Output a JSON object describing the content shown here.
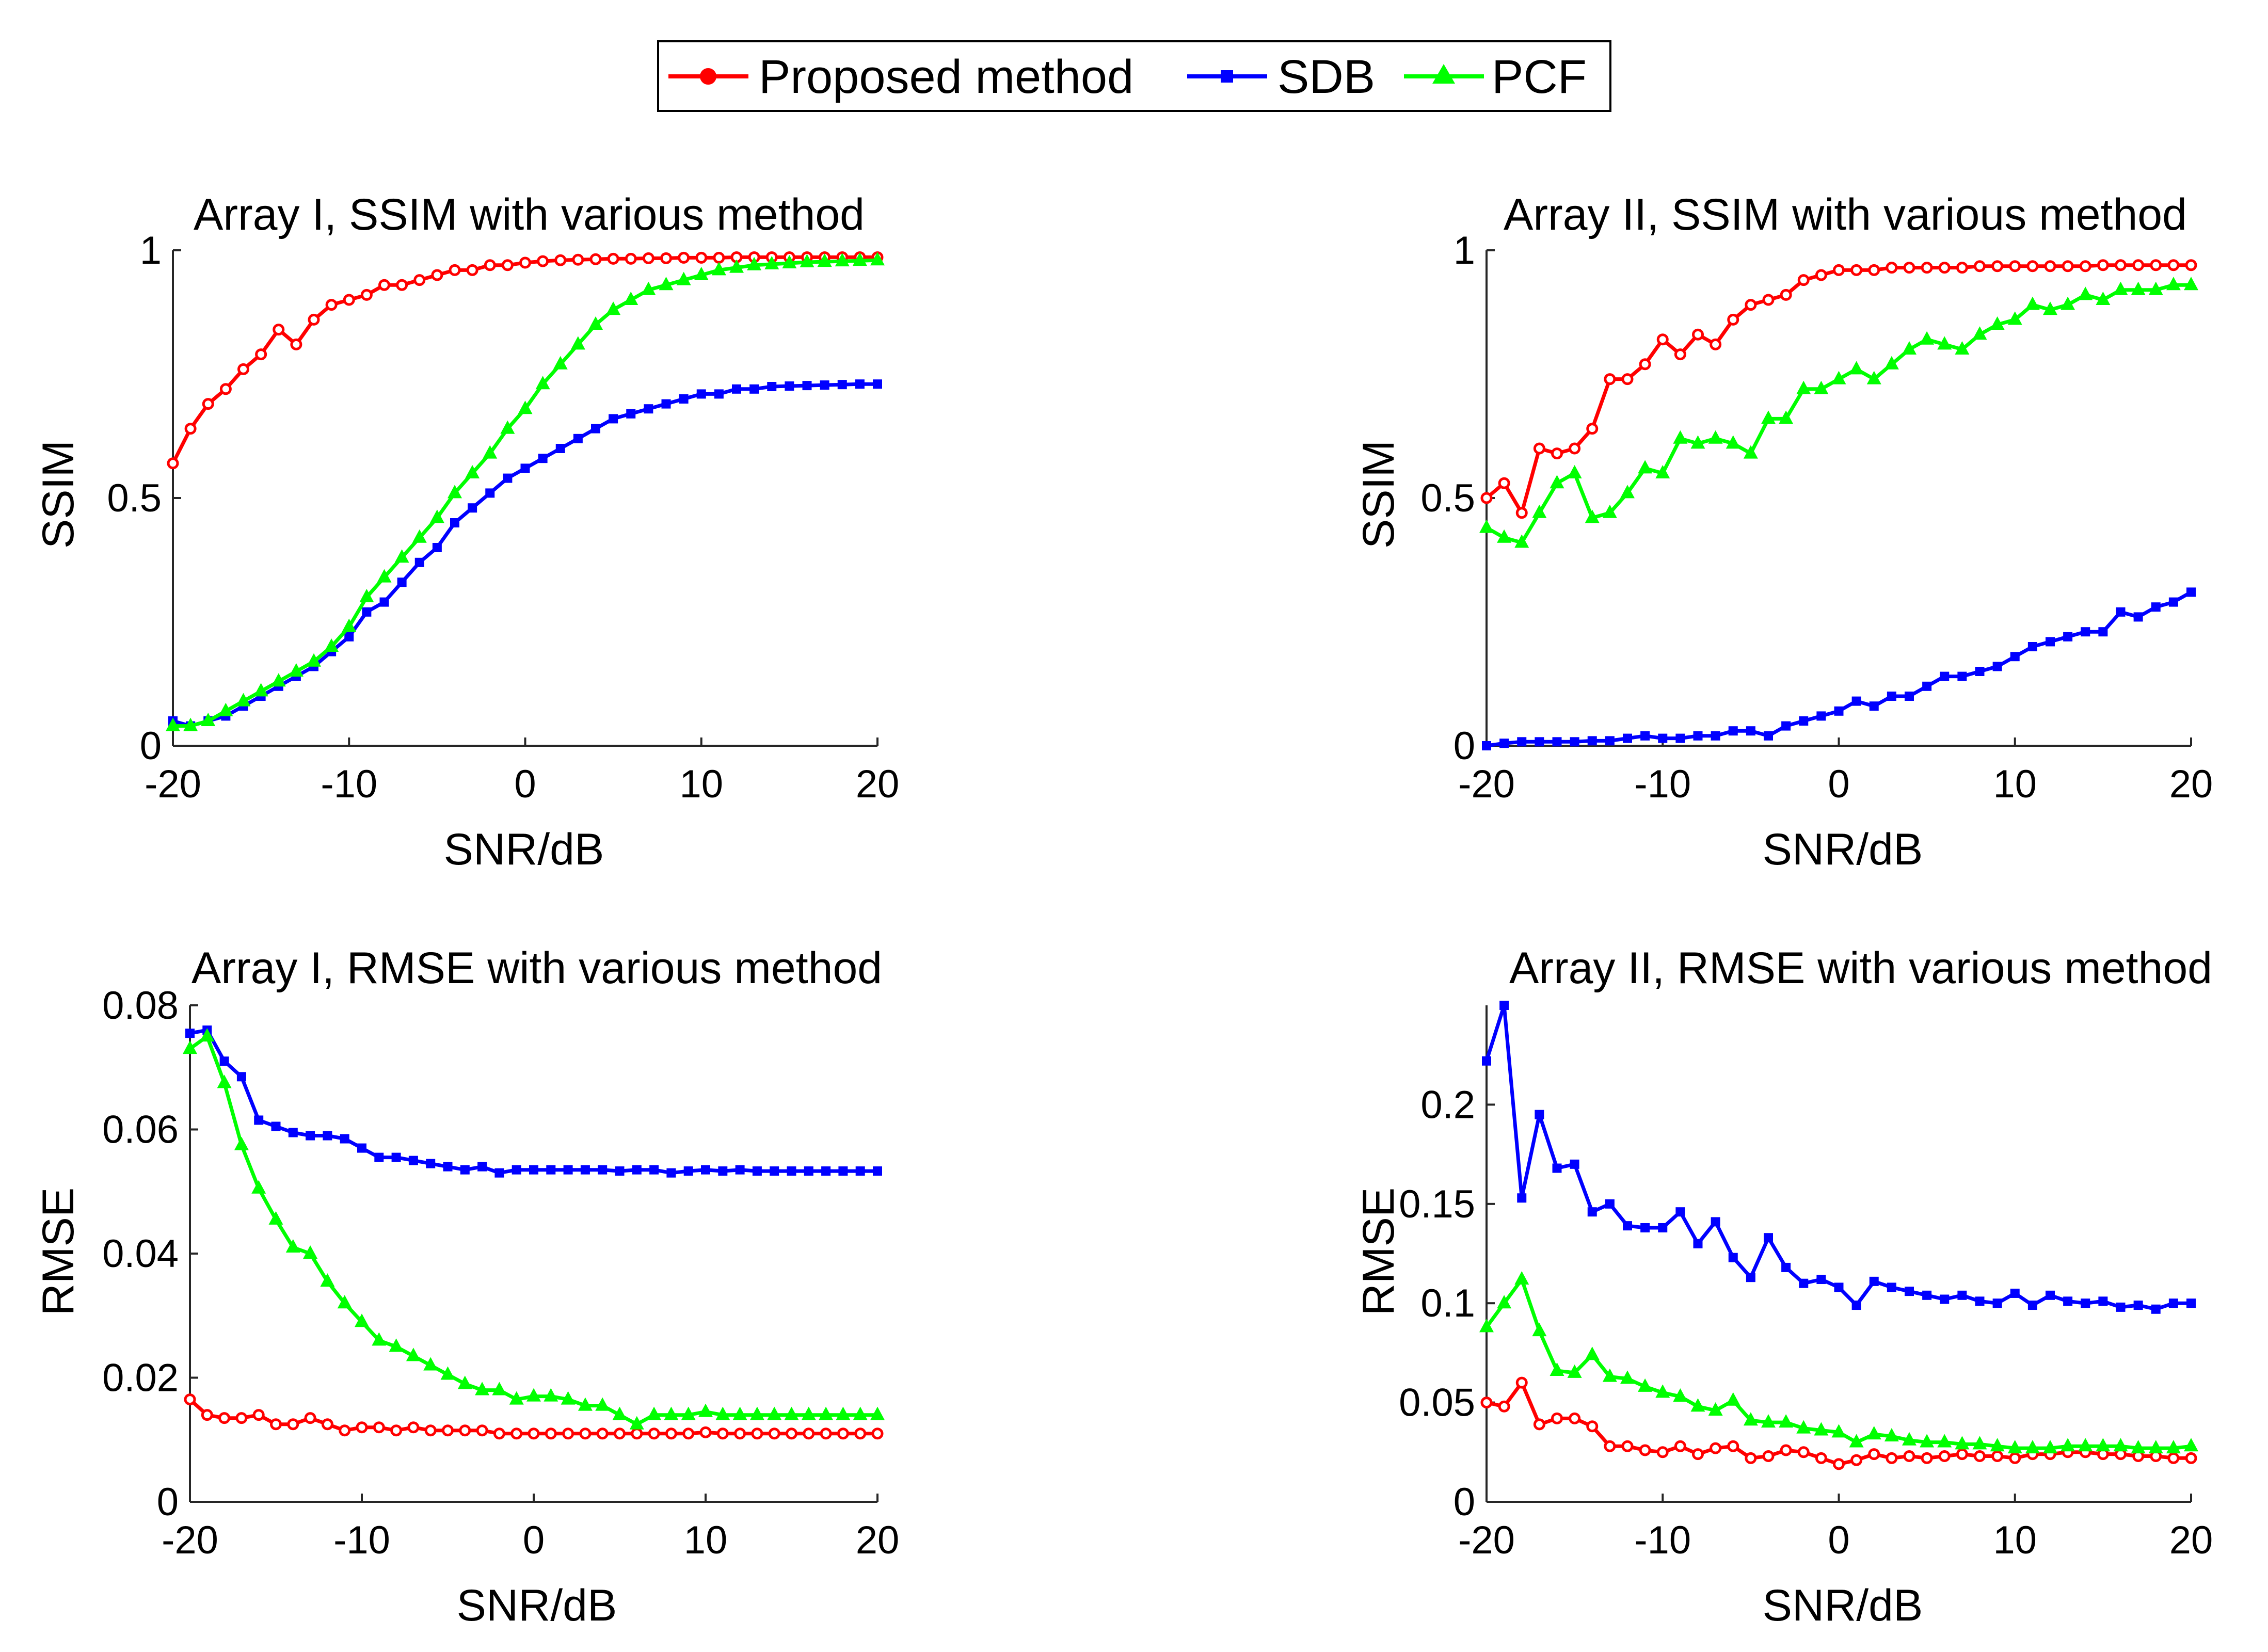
{
  "legend": {
    "entries": [
      {
        "name": "Proposed method",
        "color": "#ff0000",
        "marker": "circle"
      },
      {
        "name": "SDB",
        "color": "#0000ff",
        "marker": "square"
      },
      {
        "name": "PCF",
        "color": "#00ff00",
        "marker": "triangle"
      }
    ]
  },
  "chart_data": [
    {
      "type": "line",
      "title": "Array I, SSIM with various method",
      "xlabel": "SNR/dB",
      "ylabel": "SSIM",
      "xlim": [
        -20,
        20
      ],
      "ylim": [
        0,
        1
      ],
      "xticks": [
        -20,
        -10,
        0,
        10,
        20
      ],
      "xtick_labels": [
        "-20",
        "-10",
        "0",
        "10",
        "20"
      ],
      "yticks": [
        0,
        0.5,
        1
      ],
      "ytick_labels": [
        "0",
        "0.5",
        "1"
      ],
      "x": [
        -20,
        -19,
        -18,
        -17,
        -16,
        -15,
        -14,
        -13,
        -12,
        -11,
        -10,
        -9,
        -8,
        -7,
        -6,
        -5,
        -4,
        -3,
        -2,
        -1,
        0,
        1,
        2,
        3,
        4,
        5,
        6,
        7,
        8,
        9,
        10,
        11,
        12,
        13,
        14,
        15,
        16,
        17,
        18,
        19,
        20
      ],
      "series": [
        {
          "name": "Proposed method",
          "color": "#ff0000",
          "marker": "circle",
          "values": [
            0.57,
            0.64,
            0.69,
            0.72,
            0.76,
            0.79,
            0.84,
            0.81,
            0.86,
            0.89,
            0.9,
            0.91,
            0.93,
            0.93,
            0.94,
            0.95,
            0.96,
            0.96,
            0.97,
            0.97,
            0.975,
            0.978,
            0.98,
            0.981,
            0.982,
            0.983,
            0.983,
            0.984,
            0.984,
            0.985,
            0.985,
            0.985,
            0.986,
            0.986,
            0.986,
            0.986,
            0.986,
            0.986,
            0.986,
            0.986,
            0.986
          ]
        },
        {
          "name": "SDB",
          "color": "#0000ff",
          "marker": "square",
          "values": [
            0.05,
            0.04,
            0.05,
            0.06,
            0.08,
            0.1,
            0.12,
            0.14,
            0.16,
            0.19,
            0.22,
            0.27,
            0.29,
            0.33,
            0.37,
            0.4,
            0.45,
            0.48,
            0.51,
            0.54,
            0.56,
            0.58,
            0.6,
            0.62,
            0.64,
            0.66,
            0.67,
            0.68,
            0.69,
            0.7,
            0.71,
            0.71,
            0.72,
            0.72,
            0.725,
            0.726,
            0.727,
            0.728,
            0.729,
            0.73,
            0.73
          ]
        },
        {
          "name": "PCF",
          "color": "#00ff00",
          "marker": "triangle",
          "values": [
            0.04,
            0.04,
            0.05,
            0.07,
            0.09,
            0.11,
            0.13,
            0.15,
            0.17,
            0.2,
            0.24,
            0.3,
            0.34,
            0.38,
            0.42,
            0.46,
            0.51,
            0.55,
            0.59,
            0.64,
            0.68,
            0.73,
            0.77,
            0.81,
            0.85,
            0.88,
            0.9,
            0.92,
            0.93,
            0.94,
            0.95,
            0.96,
            0.965,
            0.97,
            0.972,
            0.974,
            0.976,
            0.977,
            0.978,
            0.979,
            0.98
          ]
        }
      ]
    },
    {
      "type": "line",
      "title": "Array II, SSIM with various method",
      "xlabel": "SNR/dB",
      "ylabel": "SSIM",
      "xlim": [
        -20,
        20
      ],
      "ylim": [
        0,
        1
      ],
      "xticks": [
        -20,
        -10,
        0,
        10,
        20
      ],
      "xtick_labels": [
        "-20",
        "-10",
        "0",
        "10",
        "20"
      ],
      "yticks": [
        0,
        0.5,
        1
      ],
      "ytick_labels": [
        "0",
        "0.5",
        "1"
      ],
      "x": [
        -20,
        -19,
        -18,
        -17,
        -16,
        -15,
        -14,
        -13,
        -12,
        -11,
        -10,
        -9,
        -8,
        -7,
        -6,
        -5,
        -4,
        -3,
        -2,
        -1,
        0,
        1,
        2,
        3,
        4,
        5,
        6,
        7,
        8,
        9,
        10,
        11,
        12,
        13,
        14,
        15,
        16,
        17,
        18,
        19,
        20
      ],
      "series": [
        {
          "name": "Proposed method",
          "color": "#ff0000",
          "marker": "circle",
          "values": [
            0.5,
            0.53,
            0.47,
            0.6,
            0.59,
            0.6,
            0.64,
            0.74,
            0.74,
            0.77,
            0.82,
            0.79,
            0.83,
            0.81,
            0.86,
            0.89,
            0.9,
            0.91,
            0.94,
            0.95,
            0.96,
            0.96,
            0.96,
            0.965,
            0.965,
            0.965,
            0.965,
            0.965,
            0.968,
            0.968,
            0.968,
            0.968,
            0.968,
            0.968,
            0.968,
            0.97,
            0.97,
            0.97,
            0.97,
            0.97,
            0.97
          ]
        },
        {
          "name": "SDB",
          "color": "#0000ff",
          "marker": "square",
          "values": [
            0.0,
            0.005,
            0.008,
            0.008,
            0.008,
            0.008,
            0.01,
            0.01,
            0.015,
            0.02,
            0.015,
            0.015,
            0.02,
            0.02,
            0.03,
            0.03,
            0.02,
            0.04,
            0.05,
            0.06,
            0.07,
            0.09,
            0.08,
            0.1,
            0.1,
            0.12,
            0.14,
            0.14,
            0.15,
            0.16,
            0.18,
            0.2,
            0.21,
            0.22,
            0.23,
            0.23,
            0.27,
            0.26,
            0.28,
            0.29,
            0.31
          ]
        },
        {
          "name": "PCF",
          "color": "#00ff00",
          "marker": "triangle",
          "values": [
            0.44,
            0.42,
            0.41,
            0.47,
            0.53,
            0.55,
            0.46,
            0.47,
            0.51,
            0.56,
            0.55,
            0.62,
            0.61,
            0.62,
            0.61,
            0.59,
            0.66,
            0.66,
            0.72,
            0.72,
            0.74,
            0.76,
            0.74,
            0.77,
            0.8,
            0.82,
            0.81,
            0.8,
            0.83,
            0.85,
            0.86,
            0.89,
            0.88,
            0.89,
            0.91,
            0.9,
            0.92,
            0.92,
            0.92,
            0.93,
            0.93
          ]
        }
      ]
    },
    {
      "type": "line",
      "title": "Array I, RMSE with various method",
      "xlabel": "SNR/dB",
      "ylabel": "RMSE",
      "xlim": [
        -20,
        20
      ],
      "ylim": [
        0,
        0.08
      ],
      "xticks": [
        -20,
        -10,
        0,
        10,
        20
      ],
      "xtick_labels": [
        "-20",
        "-10",
        "0",
        "10",
        "20"
      ],
      "yticks": [
        0,
        0.02,
        0.04,
        0.06,
        0.08
      ],
      "ytick_labels": [
        "0",
        "0.02",
        "0.04",
        "0.06",
        "0.08"
      ],
      "x": [
        -20,
        -19,
        -18,
        -17,
        -16,
        -15,
        -14,
        -13,
        -12,
        -11,
        -10,
        -9,
        -8,
        -7,
        -6,
        -5,
        -4,
        -3,
        -2,
        -1,
        0,
        1,
        2,
        3,
        4,
        5,
        6,
        7,
        8,
        9,
        10,
        11,
        12,
        13,
        14,
        15,
        16,
        17,
        18,
        19,
        20
      ],
      "series": [
        {
          "name": "Proposed method",
          "color": "#ff0000",
          "marker": "circle",
          "values": [
            0.0165,
            0.014,
            0.0135,
            0.0135,
            0.014,
            0.0125,
            0.0125,
            0.0135,
            0.0125,
            0.0115,
            0.012,
            0.012,
            0.0115,
            0.012,
            0.0115,
            0.0115,
            0.0115,
            0.0115,
            0.011,
            0.011,
            0.011,
            0.011,
            0.011,
            0.011,
            0.011,
            0.011,
            0.011,
            0.011,
            0.011,
            0.011,
            0.0112,
            0.011,
            0.011,
            0.011,
            0.011,
            0.011,
            0.011,
            0.011,
            0.011,
            0.011,
            0.011
          ]
        },
        {
          "name": "SDB",
          "color": "#0000ff",
          "marker": "square",
          "values": [
            0.0755,
            0.076,
            0.071,
            0.0685,
            0.0615,
            0.0605,
            0.0595,
            0.059,
            0.059,
            0.0585,
            0.057,
            0.0555,
            0.0555,
            0.055,
            0.0545,
            0.054,
            0.0535,
            0.054,
            0.053,
            0.0535,
            0.0535,
            0.0535,
            0.0535,
            0.0535,
            0.0535,
            0.0533,
            0.0535,
            0.0535,
            0.053,
            0.0533,
            0.0535,
            0.0533,
            0.0535,
            0.0533,
            0.0533,
            0.0533,
            0.0533,
            0.0533,
            0.0533,
            0.0533,
            0.0533
          ]
        },
        {
          "name": "PCF",
          "color": "#00ff00",
          "marker": "triangle",
          "values": [
            0.073,
            0.075,
            0.0675,
            0.0575,
            0.0505,
            0.0455,
            0.041,
            0.04,
            0.0355,
            0.032,
            0.029,
            0.026,
            0.025,
            0.0235,
            0.022,
            0.0205,
            0.019,
            0.018,
            0.018,
            0.0165,
            0.017,
            0.017,
            0.0165,
            0.0155,
            0.0155,
            0.014,
            0.0125,
            0.014,
            0.014,
            0.014,
            0.0145,
            0.014,
            0.014,
            0.014,
            0.014,
            0.014,
            0.014,
            0.014,
            0.014,
            0.014,
            0.014
          ]
        }
      ]
    },
    {
      "type": "line",
      "title": "Array II, RMSE with various method",
      "xlabel": "SNR/dB",
      "ylabel": "RMSE",
      "xlim": [
        -20,
        20
      ],
      "ylim": [
        0,
        0.25
      ],
      "xticks": [
        -20,
        -10,
        0,
        10,
        20
      ],
      "xtick_labels": [
        "-20",
        "-10",
        "0",
        "10",
        "20"
      ],
      "yticks": [
        0,
        0.05,
        0.1,
        0.15,
        0.2
      ],
      "ytick_labels": [
        "0",
        "0.05",
        "0.1",
        "0.15",
        "0.2"
      ],
      "x": [
        -20,
        -19,
        -18,
        -17,
        -16,
        -15,
        -14,
        -13,
        -12,
        -11,
        -10,
        -9,
        -8,
        -7,
        -6,
        -5,
        -4,
        -3,
        -2,
        -1,
        0,
        1,
        2,
        3,
        4,
        5,
        6,
        7,
        8,
        9,
        10,
        11,
        12,
        13,
        14,
        15,
        16,
        17,
        18,
        19,
        20
      ],
      "series": [
        {
          "name": "Proposed method",
          "color": "#ff0000",
          "marker": "circle",
          "values": [
            0.05,
            0.048,
            0.06,
            0.039,
            0.042,
            0.042,
            0.038,
            0.028,
            0.028,
            0.026,
            0.025,
            0.028,
            0.024,
            0.027,
            0.028,
            0.022,
            0.023,
            0.026,
            0.025,
            0.022,
            0.019,
            0.021,
            0.024,
            0.022,
            0.023,
            0.022,
            0.023,
            0.024,
            0.023,
            0.023,
            0.022,
            0.024,
            0.024,
            0.025,
            0.025,
            0.024,
            0.024,
            0.023,
            0.023,
            0.022,
            0.022
          ]
        },
        {
          "name": "SDB",
          "color": "#0000ff",
          "marker": "square",
          "values": [
            0.222,
            0.25,
            0.153,
            0.195,
            0.168,
            0.17,
            0.146,
            0.15,
            0.139,
            0.138,
            0.138,
            0.146,
            0.13,
            0.141,
            0.123,
            0.113,
            0.133,
            0.118,
            0.11,
            0.112,
            0.108,
            0.099,
            0.111,
            0.108,
            0.106,
            0.104,
            0.102,
            0.104,
            0.101,
            0.1,
            0.105,
            0.099,
            0.104,
            0.101,
            0.1,
            0.101,
            0.098,
            0.099,
            0.097,
            0.1,
            0.1
          ]
        },
        {
          "name": "PCF",
          "color": "#00ff00",
          "marker": "triangle",
          "values": [
            0.088,
            0.1,
            0.112,
            0.086,
            0.066,
            0.065,
            0.074,
            0.063,
            0.062,
            0.058,
            0.055,
            0.053,
            0.048,
            0.046,
            0.051,
            0.041,
            0.04,
            0.04,
            0.037,
            0.036,
            0.035,
            0.03,
            0.034,
            0.033,
            0.031,
            0.03,
            0.03,
            0.029,
            0.029,
            0.028,
            0.027,
            0.027,
            0.027,
            0.028,
            0.028,
            0.028,
            0.028,
            0.027,
            0.027,
            0.027,
            0.028
          ]
        }
      ]
    }
  ]
}
